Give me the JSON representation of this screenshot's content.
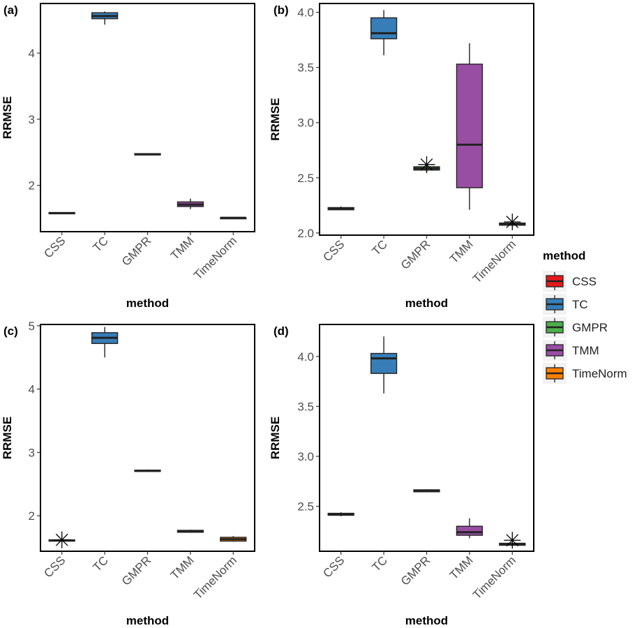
{
  "legend": {
    "title": "method",
    "entries": [
      {
        "label": "CSS",
        "color": "#e41a1c"
      },
      {
        "label": "TC",
        "color": "#377eb8"
      },
      {
        "label": "GMPR",
        "color": "#4daf4a"
      },
      {
        "label": "TMM",
        "color": "#984ea3"
      },
      {
        "label": "TimeNorm",
        "color": "#ff7f00"
      }
    ]
  },
  "chart_data": [
    {
      "type": "box",
      "panel": "(a)",
      "xlabel": "method",
      "ylabel": "RRMSE",
      "categories": [
        "CSS",
        "TC",
        "GMPR",
        "TMM",
        "TimeNorm"
      ],
      "ylim": [
        1.3,
        4.75
      ],
      "yticks": [
        {
          "v": 2,
          "label": "2"
        },
        {
          "v": 3,
          "label": "3"
        },
        {
          "v": 4,
          "label": "4"
        }
      ],
      "boxes": [
        {
          "method": "CSS",
          "min": 1.57,
          "q1": 1.57,
          "median": 1.58,
          "q3": 1.59,
          "max": 1.59,
          "outliers": []
        },
        {
          "method": "TC",
          "min": 4.43,
          "q1": 4.52,
          "median": 4.56,
          "q3": 4.61,
          "max": 4.63,
          "outliers": []
        },
        {
          "method": "GMPR",
          "min": 2.46,
          "q1": 2.46,
          "median": 2.47,
          "q3": 2.48,
          "max": 2.48,
          "outliers": []
        },
        {
          "method": "TMM",
          "min": 1.64,
          "q1": 1.68,
          "median": 1.71,
          "q3": 1.75,
          "max": 1.8,
          "outliers": []
        },
        {
          "method": "TimeNorm",
          "min": 1.5,
          "q1": 1.5,
          "median": 1.51,
          "q3": 1.51,
          "max": 1.52,
          "outliers": []
        }
      ]
    },
    {
      "type": "box",
      "panel": "(b)",
      "xlabel": "method",
      "ylabel": "RRMSE",
      "categories": [
        "CSS",
        "TC",
        "GMPR",
        "TMM",
        "TimeNorm"
      ],
      "ylim": [
        1.98,
        4.08
      ],
      "yticks": [
        {
          "v": 2.0,
          "label": "2.0"
        },
        {
          "v": 2.5,
          "label": "2.5"
        },
        {
          "v": 3.0,
          "label": "3.0"
        },
        {
          "v": 3.5,
          "label": "3.5"
        },
        {
          "v": 4.0,
          "label": "4.0"
        }
      ],
      "boxes": [
        {
          "method": "CSS",
          "min": 2.21,
          "q1": 2.21,
          "median": 2.22,
          "q3": 2.23,
          "max": 2.24,
          "outliers": []
        },
        {
          "method": "TC",
          "min": 3.61,
          "q1": 3.76,
          "median": 3.81,
          "q3": 3.95,
          "max": 4.02,
          "outliers": []
        },
        {
          "method": "GMPR",
          "min": 2.55,
          "q1": 2.57,
          "median": 2.585,
          "q3": 2.6,
          "max": 2.61,
          "outliers": [
            2.62
          ]
        },
        {
          "method": "TMM",
          "min": 2.21,
          "q1": 2.41,
          "median": 2.8,
          "q3": 3.53,
          "max": 3.72,
          "outliers": []
        },
        {
          "method": "TimeNorm",
          "min": 2.06,
          "q1": 2.07,
          "median": 2.08,
          "q3": 2.09,
          "max": 2.09,
          "outliers": [
            2.1
          ]
        }
      ]
    },
    {
      "type": "box",
      "panel": "(c)",
      "xlabel": "method",
      "ylabel": "RRMSE",
      "categories": [
        "CSS",
        "TC",
        "GMPR",
        "TMM",
        "TimeNorm"
      ],
      "ylim": [
        1.44,
        5.02
      ],
      "yticks": [
        {
          "v": 2,
          "label": "2"
        },
        {
          "v": 3,
          "label": "3"
        },
        {
          "v": 4,
          "label": "4"
        },
        {
          "v": 5,
          "label": "5"
        }
      ],
      "boxes": [
        {
          "method": "CSS",
          "min": 1.59,
          "q1": 1.6,
          "median": 1.61,
          "q3": 1.62,
          "max": 1.63,
          "outliers": [
            1.62
          ]
        },
        {
          "method": "TC",
          "min": 4.5,
          "q1": 4.72,
          "median": 4.81,
          "q3": 4.89,
          "max": 4.98,
          "outliers": []
        },
        {
          "method": "GMPR",
          "min": 2.7,
          "q1": 2.7,
          "median": 2.71,
          "q3": 2.72,
          "max": 2.73,
          "outliers": []
        },
        {
          "method": "TMM",
          "min": 1.73,
          "q1": 1.74,
          "median": 1.75,
          "q3": 1.77,
          "max": 1.78,
          "outliers": []
        },
        {
          "method": "TimeNorm",
          "min": 1.59,
          "q1": 1.6,
          "median": 1.63,
          "q3": 1.66,
          "max": 1.68,
          "outliers": []
        }
      ]
    },
    {
      "type": "box",
      "panel": "(d)",
      "xlabel": "method",
      "ylabel": "RRMSE",
      "categories": [
        "CSS",
        "TC",
        "GMPR",
        "TMM",
        "TimeNorm"
      ],
      "ylim": [
        2.05,
        4.32
      ],
      "yticks": [
        {
          "v": 2.5,
          "label": "2.5"
        },
        {
          "v": 3.0,
          "label": "3.0"
        },
        {
          "v": 3.5,
          "label": "3.5"
        },
        {
          "v": 4.0,
          "label": "4.0"
        }
      ],
      "boxes": [
        {
          "method": "CSS",
          "min": 2.4,
          "q1": 2.41,
          "median": 2.42,
          "q3": 2.43,
          "max": 2.44,
          "outliers": []
        },
        {
          "method": "TC",
          "min": 3.63,
          "q1": 3.83,
          "median": 3.98,
          "q3": 4.03,
          "max": 4.2,
          "outliers": []
        },
        {
          "method": "GMPR",
          "min": 2.64,
          "q1": 2.645,
          "median": 2.655,
          "q3": 2.665,
          "max": 2.67,
          "outliers": []
        },
        {
          "method": "TMM",
          "min": 2.18,
          "q1": 2.21,
          "median": 2.24,
          "q3": 2.3,
          "max": 2.38,
          "outliers": []
        },
        {
          "method": "TimeNorm",
          "min": 2.1,
          "q1": 2.11,
          "median": 2.12,
          "q3": 2.13,
          "max": 2.14,
          "outliers": [
            2.16
          ]
        }
      ]
    }
  ]
}
